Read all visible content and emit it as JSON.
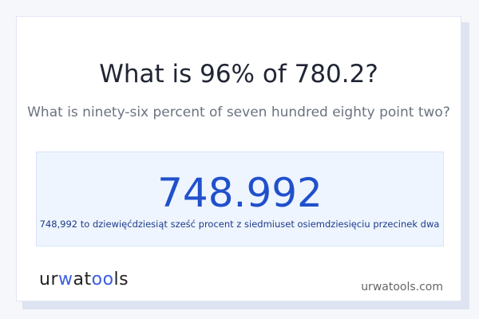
{
  "title": "What is 96% of 780.2?",
  "subtitle": "What is ninety-six percent of seven hundred eighty point two?",
  "result": {
    "value": "748.992",
    "words": "748,992 to dziewięćdziesiąt sześć procent z siedmiuset osiemdziesięciu przecinek dwa"
  },
  "logo": {
    "text": "urwatools",
    "parts": [
      "ur",
      "w",
      "a",
      "t",
      "oo",
      "ls"
    ]
  },
  "site": "urwatools.com",
  "colors": {
    "accent": "#2050cc",
    "result_bg": "#eef5ff"
  }
}
